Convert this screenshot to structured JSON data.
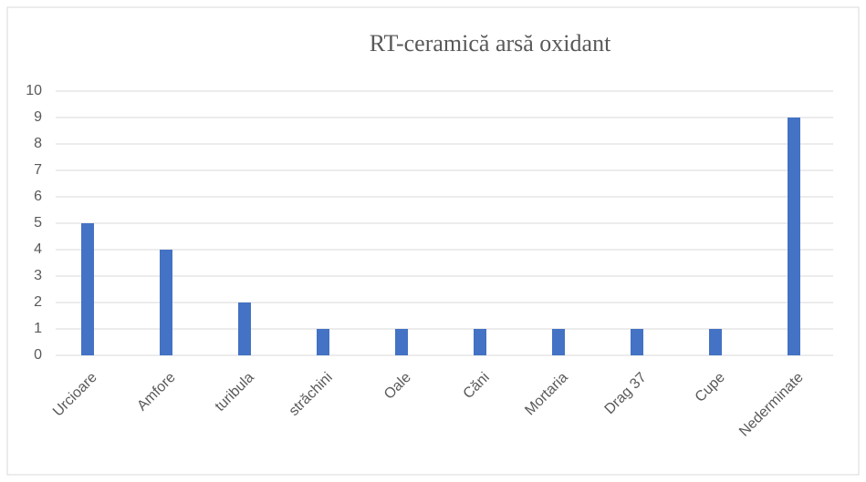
{
  "chart_data": {
    "type": "bar",
    "title": "RT-ceramică arsă oxidant",
    "categories": [
      "Urcioare",
      "Amfore",
      "turibula",
      "străchini",
      "Oale",
      "Căni",
      "Mortaria",
      "Drag 37",
      "Cupe",
      "Nederminate"
    ],
    "values": [
      5,
      4,
      2,
      1,
      1,
      1,
      1,
      1,
      1,
      9
    ],
    "color": "#4472c4",
    "ylim": [
      0,
      10
    ],
    "yticks": [
      0,
      1,
      2,
      3,
      4,
      5,
      6,
      7,
      8,
      9,
      10
    ],
    "grid": true
  }
}
